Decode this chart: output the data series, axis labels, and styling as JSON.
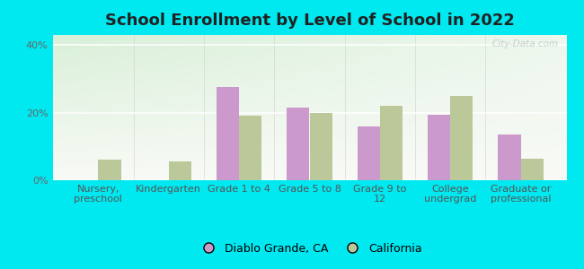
{
  "title": "School Enrollment by Level of School in 2022",
  "categories": [
    "Nursery,\npreschool",
    "Kindergarten",
    "Grade 1 to 4",
    "Grade 5 to 8",
    "Grade 9 to\n12",
    "College\nundergrad",
    "Graduate or\nprofessional"
  ],
  "diablo_values": [
    0,
    0,
    27.5,
    21.5,
    16.0,
    19.5,
    13.5
  ],
  "california_values": [
    6.0,
    5.5,
    19.0,
    20.0,
    22.0,
    25.0,
    6.5
  ],
  "diablo_color": "#cc99cc",
  "california_color": "#bbc99a",
  "bg_outer": "#00e8f0",
  "yticks": [
    0,
    20,
    40
  ],
  "ylim": [
    0,
    43
  ],
  "ylabel_labels": [
    "0%",
    "20%",
    "40%"
  ],
  "legend_diablo": "Diablo Grande, CA",
  "legend_california": "California",
  "watermark": "City-Data.com",
  "title_fontsize": 13,
  "tick_fontsize": 8,
  "bar_width": 0.32
}
